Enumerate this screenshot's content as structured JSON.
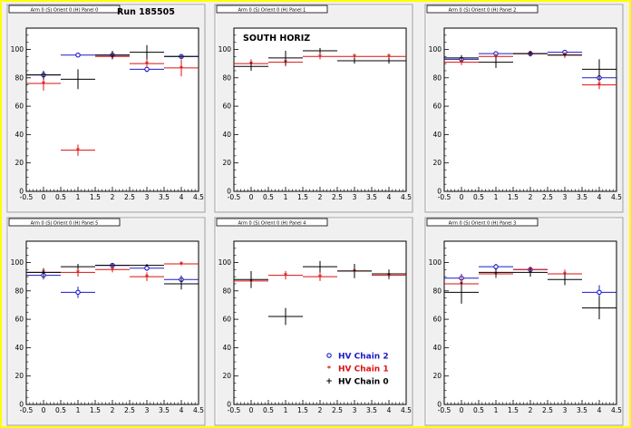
{
  "run_label": "Run 185505",
  "colors": {
    "chain2": "#1a1acc",
    "chain1": "#dd1111",
    "chain0": "#000000",
    "canvas": "#f0f0f0",
    "frame": "#ffff00"
  },
  "legend": {
    "items": [
      {
        "marker": "open-circle",
        "label": "HV Chain 2",
        "color": "#1a1acc"
      },
      {
        "marker": "star",
        "label": "HV Chain 1",
        "color": "#dd1111"
      },
      {
        "marker": "plus",
        "label": "HV Chain 0",
        "color": "#000000"
      }
    ]
  },
  "chart_data": [
    {
      "type": "scatter",
      "title": "Arm 0 (S) Orient 0 (H) Panel 0",
      "annotation": "Run 185505",
      "xlim": [
        -0.5,
        4.5
      ],
      "ylim": [
        0,
        115
      ],
      "xticks": [
        "-0.5",
        "0",
        "0.5",
        "1",
        "1.5",
        "2",
        "2.5",
        "3",
        "3.5",
        "4",
        "4.5"
      ],
      "yticks": [
        "0",
        "20",
        "40",
        "60",
        "80",
        "100"
      ],
      "series": [
        {
          "name": "HV Chain 2",
          "points": [
            [
              0,
              82,
              3
            ],
            [
              1,
              96,
              1
            ],
            [
              2,
              96,
              1
            ],
            [
              3,
              86,
              2
            ],
            [
              4,
              95,
              1
            ]
          ]
        },
        {
          "name": "HV Chain 1",
          "points": [
            [
              0,
              76,
              5
            ],
            [
              1,
              29,
              4
            ],
            [
              2,
              95,
              2
            ],
            [
              3,
              90,
              3
            ],
            [
              4,
              87,
              6
            ]
          ]
        },
        {
          "name": "HV Chain 0",
          "points": [
            [
              0,
              82,
              3
            ],
            [
              1,
              79,
              7
            ],
            [
              2,
              96,
              3
            ],
            [
              3,
              98,
              5
            ],
            [
              4,
              95,
              1
            ]
          ]
        }
      ]
    },
    {
      "type": "scatter",
      "title": "Arm 0 (S) Orient 0 (H) Panel 1",
      "annotation": "SOUTH HORIZ",
      "xlim": [
        -0.5,
        4.5
      ],
      "ylim": [
        0,
        115
      ],
      "xticks": [
        "-0.5",
        "0",
        "0.5",
        "1",
        "1.5",
        "2",
        "2.5",
        "3",
        "3.5",
        "4",
        "4.5"
      ],
      "yticks": [
        "0",
        "20",
        "40",
        "60",
        "80",
        "100"
      ],
      "series": [
        {
          "name": "HV Chain 2",
          "points": []
        },
        {
          "name": "HV Chain 1",
          "points": [
            [
              0,
              90,
              3
            ],
            [
              1,
              91,
              3
            ],
            [
              2,
              95,
              2
            ],
            [
              3,
              95,
              2
            ],
            [
              4,
              95,
              2
            ]
          ]
        },
        {
          "name": "HV Chain 0",
          "points": [
            [
              0,
              88,
              3
            ],
            [
              1,
              94,
              5
            ],
            [
              2,
              99,
              2
            ],
            [
              3,
              92,
              2
            ],
            [
              4,
              92,
              2
            ]
          ]
        }
      ]
    },
    {
      "type": "scatter",
      "title": "Arm 0 (S) Orient 0 (H) Panel 2",
      "xlim": [
        -0.5,
        4.5
      ],
      "ylim": [
        0,
        115
      ],
      "xticks": [
        "-0.5",
        "0",
        "0.5",
        "1",
        "1.5",
        "2",
        "2.5",
        "3",
        "3.5",
        "4",
        "4.5"
      ],
      "yticks": [
        "0",
        "20",
        "40",
        "60",
        "80",
        "100"
      ],
      "series": [
        {
          "name": "HV Chain 2",
          "points": [
            [
              0,
              93,
              2
            ],
            [
              1,
              97,
              1
            ],
            [
              2,
              97,
              1
            ],
            [
              3,
              98,
              1
            ],
            [
              4,
              80,
              5
            ]
          ]
        },
        {
          "name": "HV Chain 1",
          "points": [
            [
              0,
              91,
              2
            ],
            [
              1,
              95,
              2
            ],
            [
              2,
              97,
              1
            ],
            [
              3,
              96,
              2
            ],
            [
              4,
              75,
              3
            ]
          ]
        },
        {
          "name": "HV Chain 0",
          "points": [
            [
              0,
              94,
              2
            ],
            [
              1,
              91,
              4
            ],
            [
              2,
              97,
              2
            ],
            [
              3,
              96,
              1
            ],
            [
              4,
              86,
              7
            ]
          ]
        }
      ]
    },
    {
      "type": "scatter",
      "title": "Arm 0 (S) Orient 0 (H) Panel 5",
      "xlim": [
        -0.5,
        4.5
      ],
      "ylim": [
        0,
        115
      ],
      "xticks": [
        "-0.5",
        "0",
        "0.5",
        "1",
        "1.5",
        "2",
        "2.5",
        "3",
        "3.5",
        "4",
        "4.5"
      ],
      "yticks": [
        "0",
        "20",
        "40",
        "60",
        "80",
        "100"
      ],
      "series": [
        {
          "name": "HV Chain 2",
          "points": [
            [
              0,
              91,
              3
            ],
            [
              1,
              79,
              4
            ],
            [
              2,
              98,
              1
            ],
            [
              3,
              96,
              2
            ],
            [
              4,
              88,
              3
            ]
          ]
        },
        {
          "name": "HV Chain 1",
          "points": [
            [
              0,
              93,
              3
            ],
            [
              1,
              93,
              3
            ],
            [
              2,
              95,
              2
            ],
            [
              3,
              90,
              3
            ],
            [
              4,
              99,
              1
            ]
          ]
        },
        {
          "name": "HV Chain 0",
          "points": [
            [
              0,
              93,
              3
            ],
            [
              1,
              97,
              2
            ],
            [
              2,
              98,
              1
            ],
            [
              3,
              98,
              1
            ],
            [
              4,
              85,
              4
            ]
          ]
        }
      ]
    },
    {
      "type": "scatter",
      "title": "Arm 0 (S) Orient 0 (H) Panel 4",
      "xlim": [
        -0.5,
        4.5
      ],
      "ylim": [
        0,
        115
      ],
      "xticks": [
        "-0.5",
        "0",
        "0.5",
        "1",
        "1.5",
        "2",
        "2.5",
        "3",
        "3.5",
        "4",
        "4.5"
      ],
      "yticks": [
        "0",
        "20",
        "40",
        "60",
        "80",
        "100"
      ],
      "series": [
        {
          "name": "HV Chain 2",
          "points": []
        },
        {
          "name": "HV Chain 1",
          "points": [
            [
              0,
              87,
              3
            ],
            [
              1,
              91,
              3
            ],
            [
              2,
              90,
              3
            ],
            [
              3,
              94,
              3
            ],
            [
              4,
              91,
              3
            ]
          ]
        },
        {
          "name": "HV Chain 0",
          "points": [
            [
              0,
              88,
              6
            ],
            [
              1,
              62,
              6
            ],
            [
              2,
              97,
              4
            ],
            [
              3,
              94,
              5
            ],
            [
              4,
              92,
              3
            ]
          ]
        }
      ]
    },
    {
      "type": "scatter",
      "title": "Arm 0 (S) Orient 0 (H) Panel 3",
      "xlim": [
        -0.5,
        4.5
      ],
      "ylim": [
        0,
        115
      ],
      "xticks": [
        "-0.5",
        "0",
        "0.5",
        "1",
        "1.5",
        "2",
        "2.5",
        "3",
        "3.5",
        "4",
        "4.5"
      ],
      "yticks": [
        "0",
        "20",
        "40",
        "60",
        "80",
        "100"
      ],
      "series": [
        {
          "name": "HV Chain 2",
          "points": [
            [
              0,
              89,
              3
            ],
            [
              1,
              97,
              2
            ],
            [
              2,
              95,
              2
            ],
            [
              4,
              79,
              5
            ]
          ]
        },
        {
          "name": "HV Chain 1",
          "points": [
            [
              0,
              85,
              6
            ],
            [
              1,
              92,
              3
            ],
            [
              2,
              95,
              2
            ],
            [
              3,
              92,
              3
            ]
          ]
        },
        {
          "name": "HV Chain 0",
          "points": [
            [
              0,
              79,
              8
            ],
            [
              1,
              93,
              3
            ],
            [
              2,
              93,
              3
            ],
            [
              3,
              88,
              4
            ],
            [
              4,
              68,
              8
            ]
          ]
        }
      ]
    }
  ]
}
